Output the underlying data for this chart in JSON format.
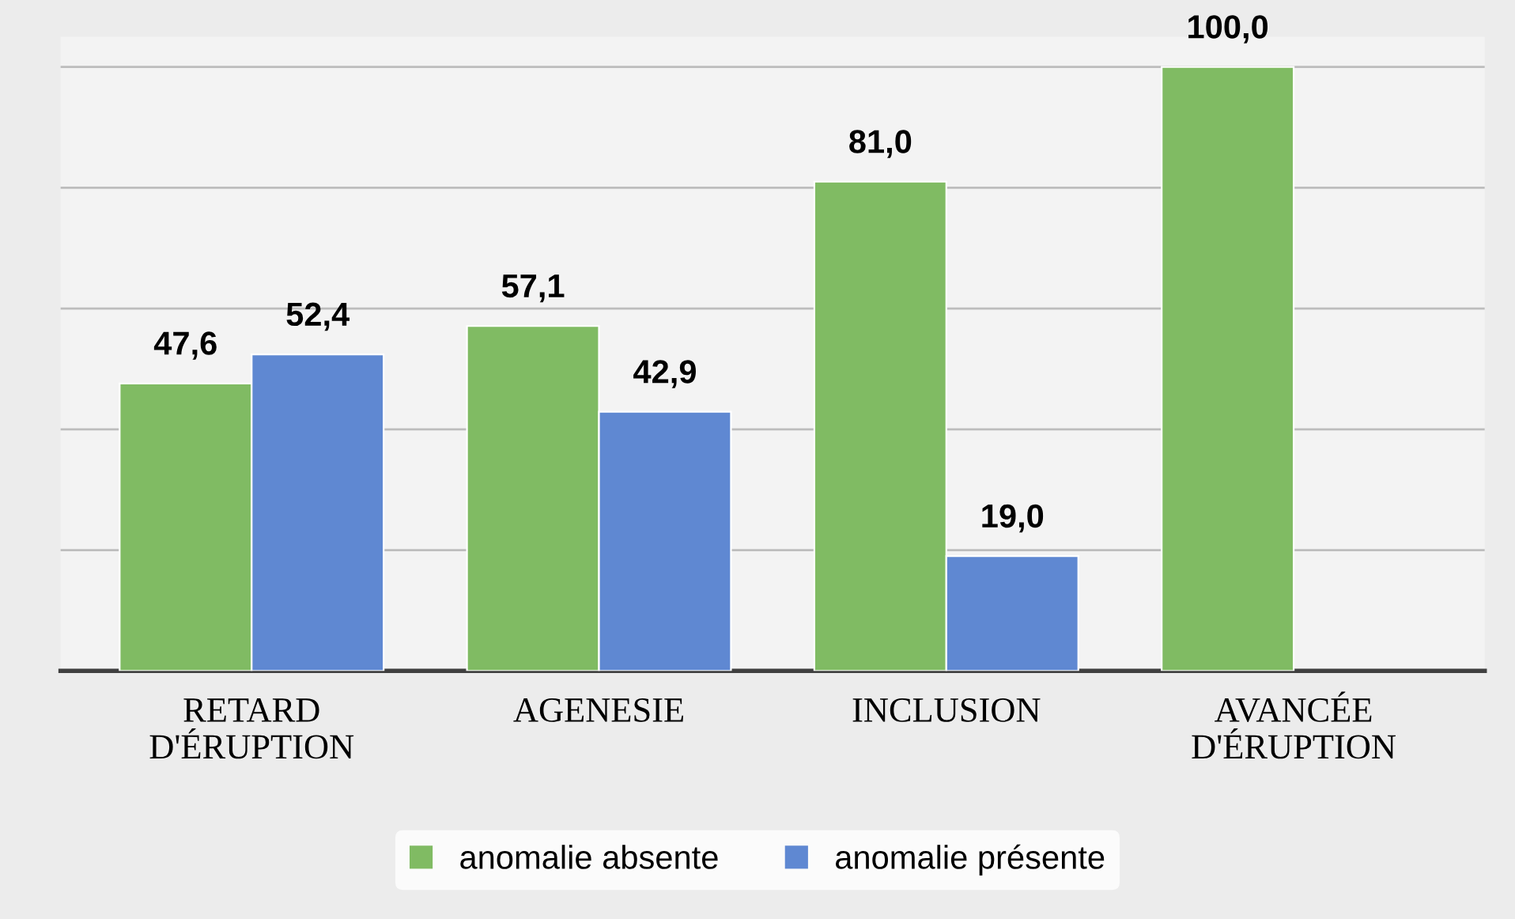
{
  "chart_data": {
    "type": "bar",
    "categories": [
      "RETARD\nD'ÉRUPTION",
      "AGENESIE",
      "INCLUSION",
      "AVANCÉE\nD'ÉRUPTION"
    ],
    "series": [
      {
        "name": "anomalie absente",
        "color": "#80bb63",
        "values": [
          47.6,
          57.1,
          81.0,
          100.0
        ],
        "value_labels": [
          "47,6",
          "57,1",
          "81,0",
          "100,0"
        ]
      },
      {
        "name": "anomalie présente",
        "color": "#5f88d2",
        "values": [
          52.4,
          42.9,
          19.0,
          null
        ],
        "value_labels": [
          "52,4",
          "42,9",
          "19,0",
          null
        ]
      }
    ],
    "tick_labels": "x",
    "grid": "y",
    "legend": "bottom"
  }
}
